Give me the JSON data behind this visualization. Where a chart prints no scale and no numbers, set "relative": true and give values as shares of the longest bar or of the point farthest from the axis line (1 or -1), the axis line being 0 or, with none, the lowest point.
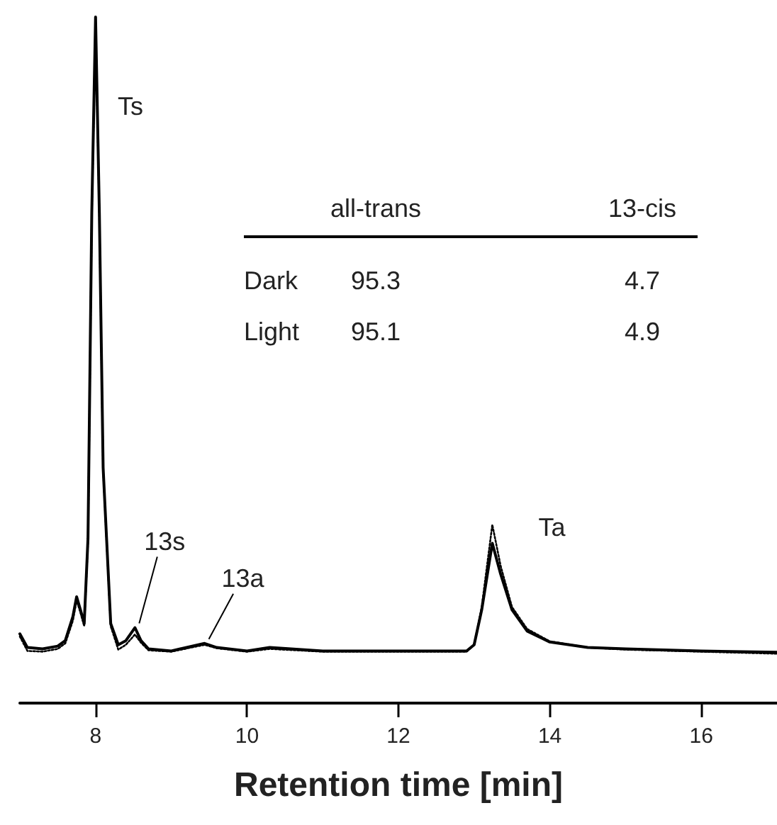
{
  "chart_data": {
    "type": "line",
    "relative": true,
    "xlabel": "Retention time [min]",
    "xlim": [
      7,
      17
    ],
    "xticks": [
      8,
      10,
      12,
      14,
      16
    ],
    "grid": false,
    "marker": "none",
    "series": [
      {
        "color": "#000000",
        "line_style": "solid",
        "x": [
          7.0,
          7.1,
          7.3,
          7.5,
          7.6,
          7.7,
          7.75,
          7.8,
          7.85,
          7.9,
          7.95,
          8.0,
          8.05,
          8.1,
          8.2,
          8.3,
          8.4,
          8.52,
          8.6,
          8.7,
          9.0,
          9.44,
          9.6,
          10.0,
          10.3,
          11.0,
          12.0,
          12.9,
          13.0,
          13.1,
          13.24,
          13.35,
          13.5,
          13.7,
          14.0,
          14.5,
          15.0,
          16.0,
          17.0
        ],
        "values": [
          0.101,
          0.081,
          0.079,
          0.083,
          0.091,
          0.126,
          0.155,
          0.136,
          0.116,
          0.24,
          0.715,
          1.0,
          0.715,
          0.343,
          0.116,
          0.085,
          0.091,
          0.11,
          0.091,
          0.079,
          0.076,
          0.087,
          0.081,
          0.076,
          0.081,
          0.076,
          0.076,
          0.076,
          0.085,
          0.136,
          0.233,
          0.188,
          0.136,
          0.105,
          0.089,
          0.081,
          0.079,
          0.076,
          0.074
        ]
      },
      {
        "color": "#000000",
        "line_style": "dotted",
        "x": [
          7.0,
          7.1,
          7.3,
          7.5,
          7.6,
          7.7,
          7.75,
          7.8,
          7.85,
          7.9,
          7.95,
          8.0,
          8.05,
          8.1,
          8.2,
          8.3,
          8.4,
          8.52,
          8.6,
          8.7,
          9.0,
          9.44,
          9.6,
          10.0,
          10.3,
          11.0,
          12.0,
          12.9,
          13.0,
          13.1,
          13.24,
          13.35,
          13.5,
          13.7,
          14.0,
          14.5,
          15.0,
          16.0,
          17.0
        ],
        "values": [
          0.097,
          0.076,
          0.075,
          0.079,
          0.087,
          0.12,
          0.15,
          0.132,
          0.112,
          0.235,
          0.71,
          0.99,
          0.71,
          0.34,
          0.112,
          0.078,
          0.085,
          0.1,
          0.088,
          0.077,
          0.075,
          0.085,
          0.08,
          0.075,
          0.079,
          0.075,
          0.075,
          0.075,
          0.085,
          0.14,
          0.26,
          0.2,
          0.14,
          0.108,
          0.09,
          0.081,
          0.078,
          0.075,
          0.072
        ]
      }
    ],
    "annotations": [
      "Ts",
      {
        "text": "13s",
        "x": 8.52,
        "y": 0.11
      },
      {
        "text": "13a",
        "x": 9.44,
        "y": 0.087
      },
      {
        "text": "Ta",
        "x": 13.24,
        "y": 0.26
      },
      "all-trans",
      "13-cis",
      "Dark",
      "95.3",
      "4.7",
      "Light",
      "95.1",
      "4.9"
    ]
  }
}
